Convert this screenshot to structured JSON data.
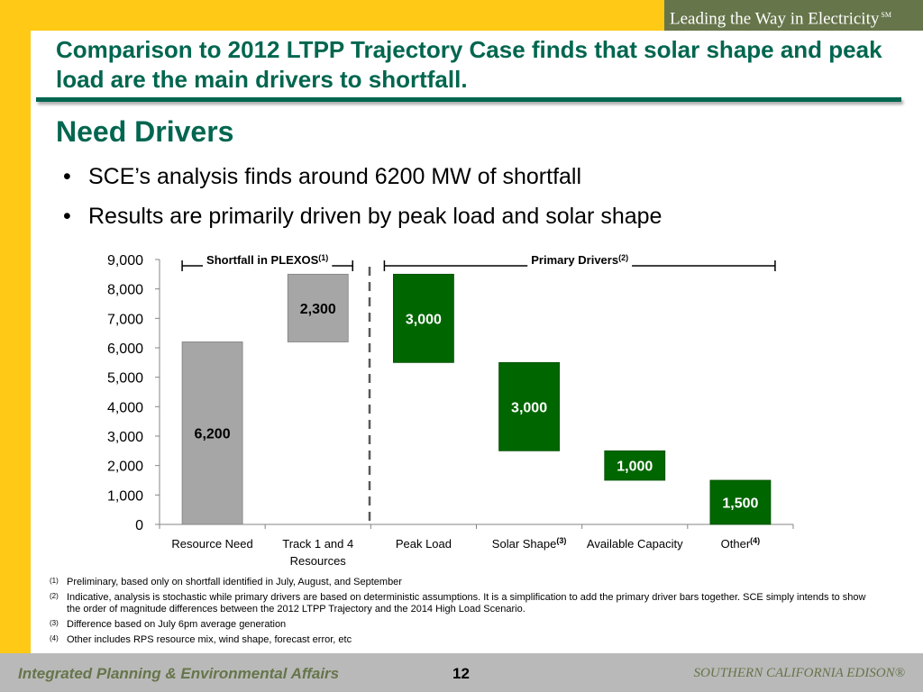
{
  "header": {
    "tagline": "Leading the Way in Electricity",
    "tagline_mark": "SM",
    "title": "Comparison to 2012 LTPP Trajectory Case finds that solar shape and peak load are the main drivers to shortfall."
  },
  "content": {
    "subtitle": "Need Drivers",
    "bullets": [
      "SCE’s analysis finds around 6200 MW of shortfall",
      "Results are primarily driven by peak load and solar shape"
    ]
  },
  "chart_data": {
    "type": "bar",
    "subtype": "waterfall",
    "categories": [
      "Resource Need",
      "Track 1 and 4 Resources",
      "Peak Load",
      "Solar Shape",
      "Available Capacity",
      "Other"
    ],
    "category_labels": [
      [
        "Resource Need"
      ],
      [
        "Track 1 and 4",
        "Resources"
      ],
      [
        "Peak Load"
      ],
      [
        "Solar Shape"
      ],
      [
        "Available Capacity"
      ],
      [
        "Other"
      ]
    ],
    "category_superscripts": [
      "",
      "",
      "",
      "(3)",
      "",
      "(4)"
    ],
    "bars": [
      {
        "category": "Resource Need",
        "bottom": 0,
        "top": 6200,
        "label": "6,200",
        "color": "#a6a6a6"
      },
      {
        "category": "Track 1 and 4 Resources",
        "bottom": 6200,
        "top": 8500,
        "label": "2,300",
        "color": "#a6a6a6"
      },
      {
        "category": "Peak Load",
        "bottom": 5500,
        "top": 8500,
        "label": "3,000",
        "color": "#006600"
      },
      {
        "category": "Solar Shape",
        "bottom": 2500,
        "top": 5500,
        "label": "3,000",
        "color": "#006600"
      },
      {
        "category": "Available Capacity",
        "bottom": 1500,
        "top": 2500,
        "label": "1,000",
        "color": "#006600"
      },
      {
        "category": "Other",
        "bottom": 0,
        "top": 1500,
        "label": "1,500",
        "color": "#006600"
      }
    ],
    "yticks": [
      "0",
      "1,000",
      "2,000",
      "3,000",
      "4,000",
      "5,000",
      "6,000",
      "7,000",
      "8,000",
      "9,000"
    ],
    "ylim": [
      0,
      9000
    ],
    "xlabel": "",
    "ylabel": "",
    "grid": false,
    "brackets": [
      {
        "label": "Shortfall in PLEXOS",
        "superscript": "(1)",
        "from": "Resource Need",
        "to": "Track 1 and 4 Resources"
      },
      {
        "label": "Primary Drivers",
        "superscript": "(2)",
        "from": "Peak Load",
        "to": "Other"
      }
    ],
    "divider": {
      "style": "dashed",
      "between": [
        "Track 1 and 4 Resources",
        "Peak Load"
      ]
    }
  },
  "footnotes": [
    {
      "mark": "(1)",
      "text": "Preliminary, based only on shortfall identified in July, August, and September"
    },
    {
      "mark": "(2)",
      "text": "Indicative, analysis is stochastic while primary drivers are based on deterministic assumptions. It is a simplification to add the primary driver bars together. SCE simply intends to show the order of magnitude differences between the 2012 LTPP Trajectory and the 2014 High Load Scenario."
    },
    {
      "mark": "(3)",
      "text": "Difference based on July 6pm average generation"
    },
    {
      "mark": "(4)",
      "text": "Other includes RPS resource mix, wind shape, forecast error, etc"
    }
  ],
  "footer": {
    "left": "Integrated Planning & Environmental Affairs",
    "page_number": "12",
    "right": "SOUTHERN CALIFORNIA EDISON®"
  },
  "colors": {
    "accent_yellow": "#ffc915",
    "title_green": "#00664f",
    "bar_green": "#006600",
    "bar_gray": "#a6a6a6",
    "tagline_bg": "#66754a",
    "footer_bg": "#b9b9b9"
  }
}
